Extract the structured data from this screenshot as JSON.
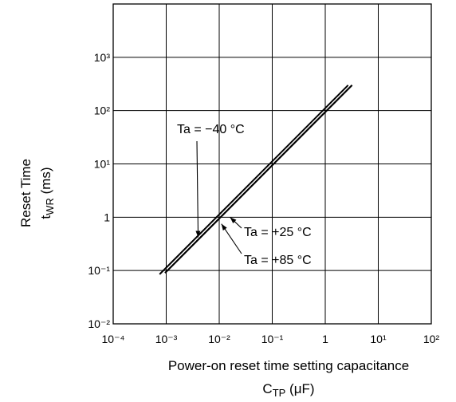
{
  "chart_data": {
    "type": "line",
    "scale": {
      "x": "log",
      "y": "log"
    },
    "grid": true,
    "xlim": [
      0.0001,
      100
    ],
    "ylim": [
      0.01,
      10000
    ],
    "xlabel_line1": "Power-on reset time setting capacitance",
    "xlabel_line2_main": "C",
    "xlabel_line2_sub": "TP",
    "xlabel_line2_unit": " (μF)",
    "ylabel_line1": "Reset Time",
    "ylabel_line2_main": "t",
    "ylabel_line2_sub": "WR",
    "ylabel_line2_unit": " (ms)",
    "x_ticks": [
      {
        "value": 0.0001,
        "label": "10⁻⁴"
      },
      {
        "value": 0.001,
        "label": "10⁻³"
      },
      {
        "value": 0.01,
        "label": "10⁻²"
      },
      {
        "value": 0.1,
        "label": "10⁻¹"
      },
      {
        "value": 1,
        "label": "1"
      },
      {
        "value": 10,
        "label": "10¹"
      },
      {
        "value": 100,
        "label": "10²"
      }
    ],
    "y_ticks": [
      {
        "value": 0.01,
        "label": "10⁻²"
      },
      {
        "value": 0.1,
        "label": "10⁻¹"
      },
      {
        "value": 1,
        "label": "1"
      },
      {
        "value": 10,
        "label": "10¹"
      },
      {
        "value": 100,
        "label": "10²"
      },
      {
        "value": 1000,
        "label": "10³"
      }
    ],
    "series": [
      {
        "name": "Ta = −40 °C",
        "x": [
          0.00075,
          2.7
        ],
        "y": [
          0.085,
          300
        ]
      },
      {
        "name": "Ta = +25 °C",
        "x": [
          0.00095,
          3.2
        ],
        "y": [
          0.09,
          300
        ]
      },
      {
        "name": "Ta = +85 °C",
        "x": [
          0.00095,
          3.2
        ],
        "y": [
          0.09,
          300
        ]
      }
    ],
    "annotations": [
      {
        "text": "Ta = −40 °C",
        "series": 0,
        "x": 0.004,
        "y": 0.42
      },
      {
        "text": "Ta = +25 °C",
        "series": 1,
        "x": 0.016,
        "y": 1.0
      },
      {
        "text": "Ta = +85 °C",
        "series": 2,
        "x": 0.011,
        "y": 0.75
      }
    ]
  }
}
